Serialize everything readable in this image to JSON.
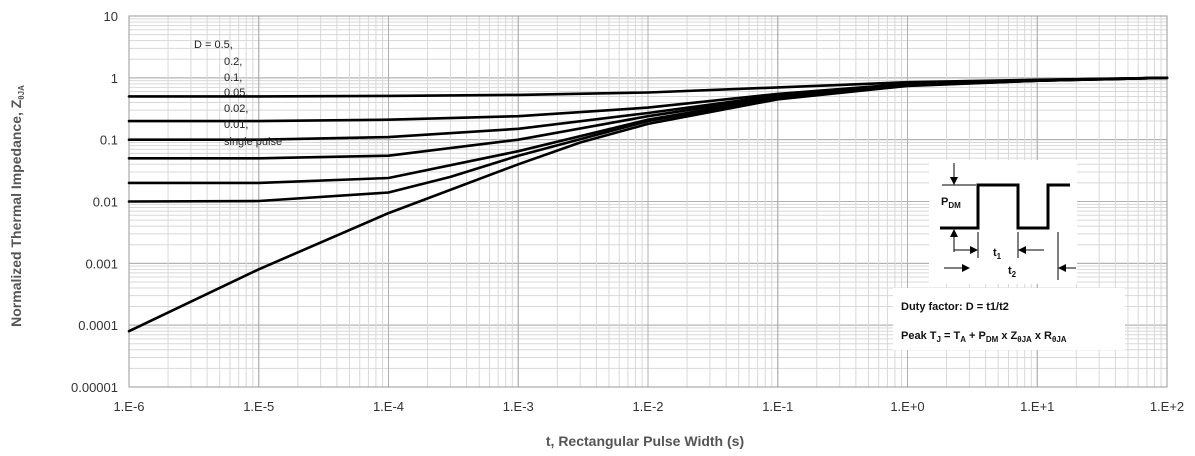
{
  "chart_data": {
    "type": "line",
    "xlabel": "t, Rectangular Pulse Width (s)",
    "ylabel": {
      "main": "Normalized Thermal Impedance, Z",
      "sub": "θJA"
    },
    "xscale": "log",
    "yscale": "log",
    "xlim": [
      1e-06,
      100
    ],
    "ylim": [
      1e-05,
      10
    ],
    "grid": true,
    "x_tick_labels": [
      "1.E-6",
      "1.E-5",
      "1.E-4",
      "1.E-3",
      "1.E-2",
      "1.E-1",
      "1.E+0",
      "1.E+1",
      "1.E+2"
    ],
    "y_tick_labels": [
      "10",
      "1",
      "0.1",
      "0.01",
      "0.001",
      "0.0001",
      "0.00001"
    ],
    "legend_labels": [
      "D = 0.5,",
      "0.2,",
      "0.1,",
      "0.05,",
      "0.02,",
      "0.01,",
      "single pulse"
    ],
    "series": [
      {
        "x": [
          1e-06,
          1e-05,
          0.0001,
          0.001,
          0.01,
          0.1,
          1,
          10,
          100
        ],
        "y": [
          0.5,
          0.5,
          0.51,
          0.53,
          0.58,
          0.7,
          0.85,
          0.93,
          1.0
        ]
      },
      {
        "x": [
          1e-06,
          1e-05,
          0.0001,
          0.001,
          0.01,
          0.1,
          1,
          10,
          100
        ],
        "y": [
          0.2,
          0.2,
          0.21,
          0.24,
          0.33,
          0.55,
          0.8,
          0.92,
          1.0
        ]
      },
      {
        "x": [
          1e-06,
          1e-05,
          0.0001,
          0.001,
          0.01,
          0.1,
          1,
          10,
          100
        ],
        "y": [
          0.1,
          0.1,
          0.11,
          0.15,
          0.27,
          0.52,
          0.78,
          0.91,
          1.0
        ]
      },
      {
        "x": [
          1e-06,
          1e-05,
          0.0001,
          0.001,
          0.01,
          0.1,
          1,
          10,
          100
        ],
        "y": [
          0.05,
          0.05,
          0.055,
          0.1,
          0.24,
          0.5,
          0.77,
          0.91,
          1.0
        ]
      },
      {
        "x": [
          1e-06,
          1e-05,
          0.0001,
          0.001,
          0.01,
          0.1,
          1,
          10,
          100
        ],
        "y": [
          0.02,
          0.02,
          0.024,
          0.065,
          0.21,
          0.48,
          0.76,
          0.9,
          1.0
        ]
      },
      {
        "x": [
          1e-06,
          1e-05,
          0.0001,
          0.0003,
          0.001,
          0.01,
          0.1,
          1,
          10,
          100
        ],
        "y": [
          0.01,
          0.0102,
          0.014,
          0.025,
          0.055,
          0.2,
          0.47,
          0.75,
          0.9,
          1.0
        ]
      },
      {
        "x": [
          1e-06,
          1e-05,
          0.0001,
          0.001,
          0.003,
          0.01,
          0.1,
          1,
          10,
          100
        ],
        "y": [
          8e-05,
          0.0008,
          0.0065,
          0.04,
          0.09,
          0.18,
          0.45,
          0.74,
          0.9,
          1.0
        ]
      }
    ],
    "inset": {
      "pdm": {
        "main": "P",
        "sub": "DM"
      },
      "t1": {
        "main": "t",
        "sub": "1"
      },
      "t2": {
        "main": "t",
        "sub": "2"
      }
    },
    "annotation": {
      "duty_factor": "Duty factor: D = t1/t2",
      "peak": [
        {
          "t": "Peak T"
        },
        {
          "s": "J"
        },
        {
          "t": " = T"
        },
        {
          "s": "A"
        },
        {
          "t": " + P"
        },
        {
          "s": "DM"
        },
        {
          "t": " x Z"
        },
        {
          "s": "θJA"
        },
        {
          "t": " x R"
        },
        {
          "s": "θJA"
        }
      ]
    }
  }
}
